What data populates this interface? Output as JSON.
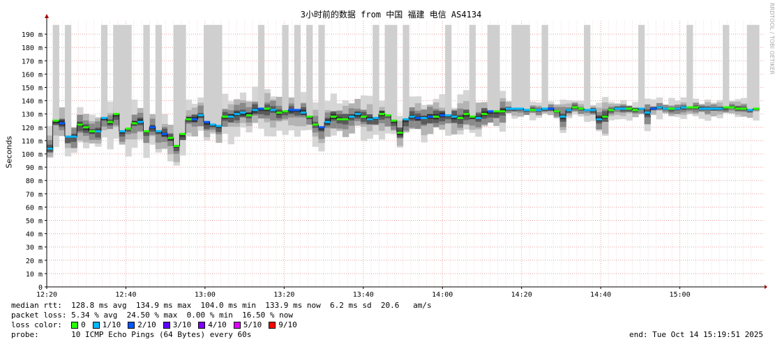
{
  "title": "3小时前的数据 from 中国 福建 电信 AS4134",
  "side_text": "RRDTOOL / TOBI OETIKER",
  "footer": {
    "median_label": "median rtt:",
    "median_value": "128.8 ms avg  134.9 ms max  104.0 ms min  133.9 ms now  6.2 ms sd  20.6   am/s",
    "loss_label": "packet loss:",
    "loss_value": "5.34 % avg  24.50 % max  0.00 % min  16.50 % now",
    "color_label": "loss color:",
    "probe_label": "probe:",
    "probe_value": "10 ICMP Echo Pings (64 Bytes) every 60s",
    "end": "end: Tue Oct 14 15:19:51 2025"
  },
  "loss_colors": [
    {
      "label": "0",
      "color": "#26ff00"
    },
    {
      "label": "1/10",
      "color": "#00b8ff"
    },
    {
      "label": "2/10",
      "color": "#0059ff"
    },
    {
      "label": "3/10",
      "color": "#5e00ff"
    },
    {
      "label": "4/10",
      "color": "#7e00ff"
    },
    {
      "label": "5/10",
      "color": "#dd00ff"
    },
    {
      "label": "9/10",
      "color": "#ff0000"
    }
  ],
  "chart_data": {
    "type": "line",
    "ylabel": "Seconds",
    "ylim": [
      0,
      200
    ],
    "yticks": [
      0,
      10,
      20,
      30,
      40,
      50,
      60,
      70,
      80,
      90,
      100,
      110,
      120,
      130,
      140,
      150,
      160,
      170,
      180,
      190
    ],
    "ytick_labels": [
      "0",
      "10 m",
      "20 m",
      "30 m",
      "40 m",
      "50 m",
      "60 m",
      "70 m",
      "80 m",
      "90 m",
      "100 m",
      "110 m",
      "120 m",
      "130 m",
      "140 m",
      "150 m",
      "160 m",
      "170 m",
      "180 m",
      "190 m"
    ],
    "xlim": [
      "12:20",
      "15:20"
    ],
    "xticks": [
      "12:20",
      "12:40",
      "13:00",
      "13:20",
      "13:40",
      "14:00",
      "14:20",
      "14:40",
      "15:00"
    ],
    "grid": true,
    "series": [
      {
        "values_median_ms": [
          104,
          125,
          123,
          113,
          113,
          122,
          120,
          117,
          117,
          127,
          124,
          130,
          117,
          119,
          123,
          124,
          117,
          120,
          117,
          115,
          112,
          106,
          115,
          126,
          126,
          129,
          124,
          122,
          121,
          128,
          128,
          130,
          131,
          129,
          133,
          134,
          134,
          133,
          131,
          132,
          133,
          133,
          131,
          128,
          122,
          120,
          124,
          128,
          126,
          126,
          128,
          130,
          128,
          126,
          127,
          130,
          129,
          125,
          116,
          126,
          128,
          127,
          127,
          128,
          128,
          129,
          129,
          128,
          127,
          130,
          128,
          127,
          130,
          132,
          132,
          132,
          134,
          134,
          134,
          133,
          133,
          133,
          134,
          134,
          132,
          128,
          133,
          135,
          134,
          133,
          133,
          126,
          128,
          133,
          134,
          134,
          134,
          133,
          134,
          131,
          134,
          135,
          134,
          134,
          134,
          135,
          135,
          135,
          134,
          134,
          134,
          134,
          135,
          135,
          134,
          134,
          133,
          134
        ]
      }
    ]
  }
}
